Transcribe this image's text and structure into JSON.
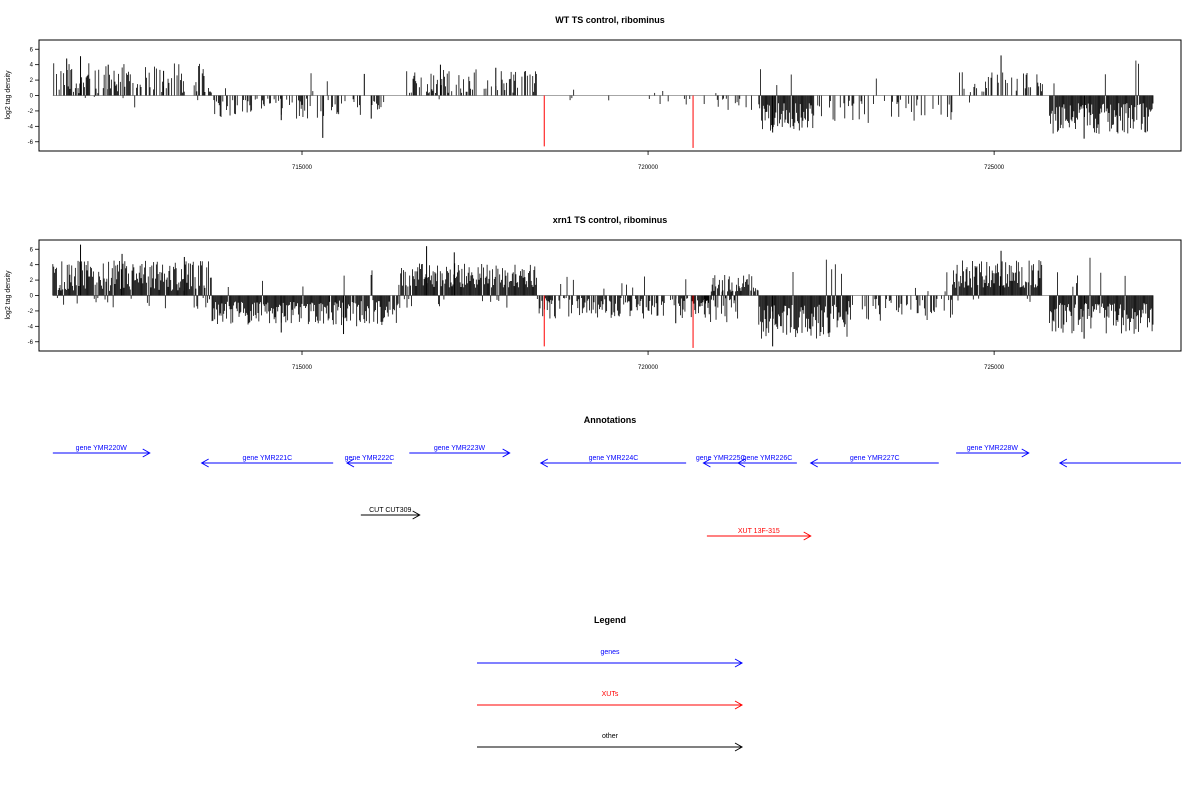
{
  "chart_data": [
    {
      "type": "bar",
      "title": "WT TS control, ribominus",
      "ylabel": "log2 tag density",
      "xlim": [
        711200,
        727700
      ],
      "ylim": [
        -7.2,
        7.2
      ],
      "x_ticks": [
        715000,
        720000,
        725000
      ],
      "y_ticks": [
        6,
        4,
        2,
        0,
        -2,
        -4,
        -6
      ],
      "bar_color": "#000000",
      "highlight_color": "#ff0000",
      "segments": [
        {
          "start": 711400,
          "end": 713700,
          "mode": "pos",
          "density": 0.55,
          "max": 4.2,
          "min": 0.3,
          "spikes": [
            [
              711800,
              5.1
            ],
            [
              711600,
              4.8
            ],
            [
              712200,
              4.0
            ],
            [
              713000,
              3.2
            ]
          ]
        },
        {
          "start": 713700,
          "end": 715400,
          "mode": "neg",
          "density": 0.5,
          "max": 3.0,
          "min": 0.4,
          "spikes": [
            [
              715300,
              -5.5
            ],
            [
              714700,
              -3.2
            ]
          ]
        },
        {
          "start": 715400,
          "end": 716200,
          "mode": "neg",
          "density": 0.35,
          "max": 2.6,
          "min": 0.4,
          "spikes": [
            [
              716000,
              -3.0
            ]
          ]
        },
        {
          "start": 716500,
          "end": 718400,
          "mode": "pos",
          "density": 0.5,
          "max": 3.4,
          "min": 0.3,
          "spikes": [
            [
              717000,
              4.0
            ],
            [
              717800,
              3.6
            ],
            [
              715900,
              2.8
            ]
          ]
        },
        {
          "start": 718600,
          "end": 721000,
          "mode": "mix",
          "density": 0.07,
          "max": 1.2,
          "min": 0.3,
          "spikes": []
        },
        {
          "start": 721000,
          "end": 721500,
          "mode": "neg",
          "density": 0.2,
          "max": 2.0,
          "min": 0.4,
          "spikes": []
        },
        {
          "start": 721600,
          "end": 722400,
          "mode": "neg",
          "density": 1.0,
          "max": 4.6,
          "min": 1.0,
          "spikes": [
            [
              721800,
              -4.8
            ]
          ]
        },
        {
          "start": 722400,
          "end": 724400,
          "mode": "neg",
          "density": 0.25,
          "max": 3.6,
          "min": 0.5,
          "spikes": []
        },
        {
          "start": 724500,
          "end": 725700,
          "mode": "pos",
          "density": 0.45,
          "max": 3.2,
          "min": 0.4,
          "spikes": [
            [
              725100,
              5.2
            ]
          ]
        },
        {
          "start": 725800,
          "end": 727300,
          "mode": "neg",
          "density": 1.0,
          "max": 5.0,
          "min": 1.0,
          "spikes": [
            [
              726300,
              -5.6
            ]
          ]
        }
      ],
      "highlight_bars": [
        [
          718500,
          -6.6
        ],
        [
          720650,
          -6.8
        ]
      ]
    },
    {
      "type": "bar",
      "title": "xrn1 TS control, ribominus",
      "ylabel": "log2 tag density",
      "xlim": [
        711200,
        727700
      ],
      "ylim": [
        -7.2,
        7.2
      ],
      "x_ticks": [
        715000,
        720000,
        725000
      ],
      "y_ticks": [
        6,
        4,
        2,
        0,
        -2,
        -4,
        -6
      ],
      "bar_color": "#000000",
      "highlight_color": "#ff0000",
      "segments": [
        {
          "start": 711400,
          "end": 713700,
          "mode": "pos",
          "density": 1.0,
          "max": 4.6,
          "min": 0.6,
          "spikes": [
            [
              711800,
              6.6
            ],
            [
              712400,
              5.4
            ],
            [
              713300,
              5.0
            ]
          ]
        },
        {
          "start": 713700,
          "end": 715400,
          "mode": "neg",
          "density": 1.0,
          "max": 3.8,
          "min": 0.8,
          "spikes": [
            [
              714700,
              -4.8
            ]
          ]
        },
        {
          "start": 715400,
          "end": 716400,
          "mode": "neg",
          "density": 0.9,
          "max": 4.0,
          "min": 0.6,
          "spikes": [
            [
              715600,
              -5.0
            ]
          ]
        },
        {
          "start": 716400,
          "end": 718400,
          "mode": "pos",
          "density": 1.0,
          "max": 4.2,
          "min": 1.0,
          "spikes": [
            [
              716800,
              6.4
            ],
            [
              717200,
              5.6
            ]
          ]
        },
        {
          "start": 718400,
          "end": 720900,
          "mode": "neg",
          "density": 0.7,
          "max": 3.0,
          "min": 0.3,
          "spikes": [
            [
              720400,
              -3.6
            ]
          ]
        },
        {
          "start": 720900,
          "end": 721600,
          "mode": "pos",
          "density": 0.8,
          "max": 2.8,
          "min": 0.5,
          "spikes": []
        },
        {
          "start": 720800,
          "end": 721300,
          "mode": "neg",
          "density": 0.6,
          "max": 3.6,
          "min": 0.5,
          "spikes": []
        },
        {
          "start": 721600,
          "end": 722900,
          "mode": "neg",
          "density": 1.0,
          "max": 5.6,
          "min": 1.2,
          "spikes": [
            [
              721800,
              -6.6
            ]
          ]
        },
        {
          "start": 722900,
          "end": 724400,
          "mode": "neg",
          "density": 0.45,
          "max": 3.4,
          "min": 0.4,
          "spikes": []
        },
        {
          "start": 724400,
          "end": 725700,
          "mode": "pos",
          "density": 1.0,
          "max": 4.6,
          "min": 1.0,
          "spikes": [
            [
              725100,
              5.8
            ]
          ]
        },
        {
          "start": 725800,
          "end": 727300,
          "mode": "neg",
          "density": 1.0,
          "max": 5.0,
          "min": 1.0,
          "spikes": [
            [
              726300,
              -5.6
            ]
          ]
        }
      ],
      "highlight_bars": [
        [
          718500,
          -6.6
        ],
        [
          720650,
          -6.8
        ]
      ]
    }
  ],
  "annotations": {
    "title": "Annotations",
    "xlim": [
      711200,
      727700
    ],
    "genes": [
      {
        "label": "gene YMR220W",
        "start": 711400,
        "end": 712800,
        "strand": "+",
        "row": 0
      },
      {
        "label": "gene YMR221C",
        "start": 713550,
        "end": 715450,
        "strand": "-",
        "row": 1
      },
      {
        "label": "gene YMR222C",
        "start": 715650,
        "end": 716300,
        "strand": "-",
        "row": 1
      },
      {
        "label": "gene YMR223W",
        "start": 716550,
        "end": 718000,
        "strand": "+",
        "row": 0
      },
      {
        "label": "gene YMR224C",
        "start": 718450,
        "end": 720550,
        "strand": "-",
        "row": 1
      },
      {
        "label": "gene YMR225C",
        "start": 720800,
        "end": 721300,
        "strand": "-",
        "row": 1
      },
      {
        "label": "gene YMR226C",
        "start": 721300,
        "end": 722150,
        "strand": "-",
        "row": 1
      },
      {
        "label": "gene YMR227C",
        "start": 722350,
        "end": 724200,
        "strand": "-",
        "row": 1
      },
      {
        "label": "gene YMR228W",
        "start": 724450,
        "end": 725500,
        "strand": "+",
        "row": 0
      },
      {
        "label": "",
        "start": 725950,
        "end": 727700,
        "strand": "-",
        "row": 1
      }
    ],
    "others": [
      {
        "label": "CUT CUT309",
        "start": 715850,
        "end": 716700,
        "strand": "+",
        "row": 2,
        "kind": "other"
      },
      {
        "label": "XUT 13F-315",
        "start": 720850,
        "end": 722350,
        "strand": "+",
        "row": 3,
        "kind": "xut"
      }
    ]
  },
  "legend": {
    "title": "Legend",
    "items": [
      {
        "label": "genes",
        "color": "#0000ff"
      },
      {
        "label": "XUTs",
        "color": "#ff0000"
      },
      {
        "label": "other",
        "color": "#000000"
      }
    ]
  }
}
